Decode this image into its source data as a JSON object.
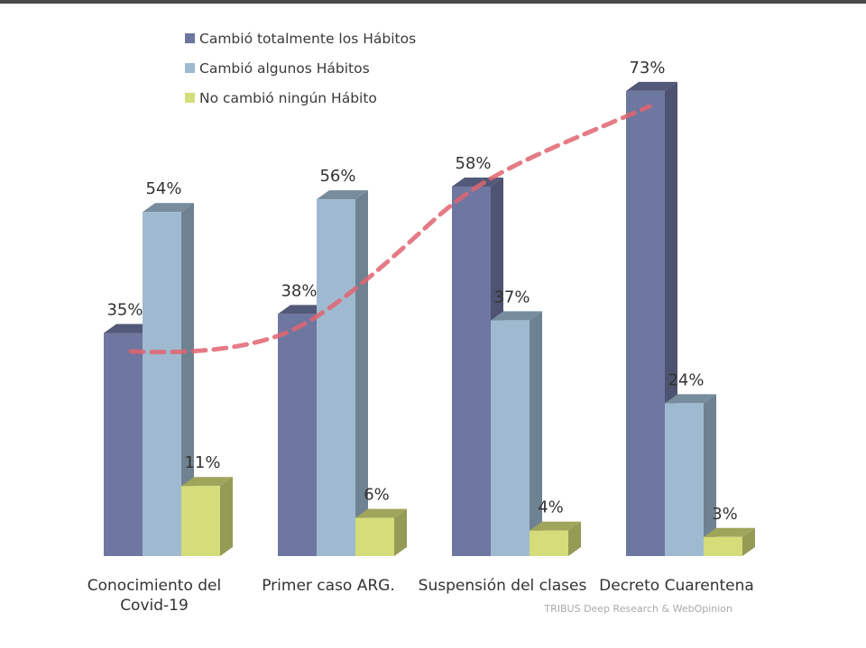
{
  "chart_data": {
    "type": "bar",
    "title": "",
    "xlabel": "",
    "ylabel": "",
    "ylim": [
      0,
      100
    ],
    "grid": false,
    "legend_position": "top-left",
    "categories": [
      [
        "Conocimiento del",
        "Covid-19"
      ],
      [
        "Primer caso ARG."
      ],
      [
        "Suspensión del clases"
      ],
      [
        "Decreto Cuarentena"
      ]
    ],
    "series": [
      {
        "name": "Cambió totalmente los Hábitos",
        "color": "#6e77a0",
        "values": [
          35,
          38,
          58,
          73
        ]
      },
      {
        "name": "Cambió algunos Hábitos",
        "color": "#9fbad0",
        "values": [
          54,
          56,
          37,
          24
        ]
      },
      {
        "name": "No cambió ningún Hábito",
        "color": "#d5dc7a",
        "values": [
          11,
          6,
          4,
          3
        ]
      }
    ],
    "value_suffix": "%",
    "trend_line": {
      "style": "dashed",
      "color": "#e06470",
      "follows": "Cambió totalmente los Hábitos"
    },
    "source": "TRIBUS Deep Research & WebOpinion"
  }
}
